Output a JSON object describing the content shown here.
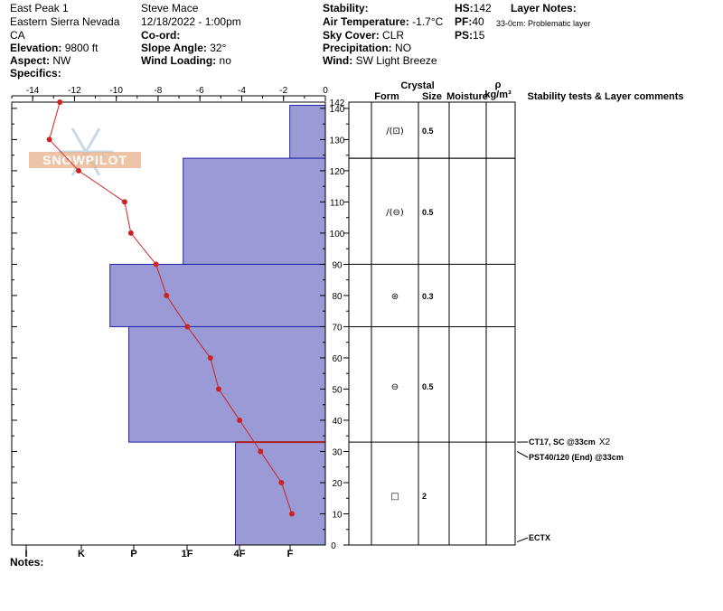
{
  "header": {
    "location": "East Peak 1",
    "region": "Eastern Sierra Nevada",
    "state": "CA",
    "elevation_label": "Elevation:",
    "elevation": "9800 ft",
    "aspect_label": "Aspect:",
    "aspect": "NW",
    "specifics_label": "Specifics:",
    "observer": "Steve Mace",
    "datetime": "12/18/2022 - 1:00pm",
    "coord_label": "Co-ord:",
    "slope_label": "Slope Angle:",
    "slope": "32°",
    "wind_loading_label": "Wind Loading:",
    "wind_loading": "no",
    "stability_label": "Stability:",
    "air_temp_label": "Air Temperature:",
    "air_temp": "-1.7°C",
    "sky_label": "Sky Cover:",
    "sky": "CLR",
    "precip_label": "Precipitation:",
    "precip": "NO",
    "wind_label": "Wind:",
    "wind": "SW Light Breeze",
    "hs_label": "HS:",
    "hs": "142",
    "pf_label": "PF:",
    "pf": "40",
    "ps_label": "PS:",
    "ps": "15",
    "layer_notes_label": "Layer Notes:",
    "layer_note": "33-0cm: Problematic layer",
    "notes_label": "Notes:"
  },
  "columns": {
    "crystal": "Crystal",
    "form": "Form",
    "size": "Size",
    "moisture": "Moisture",
    "rho": "ρ",
    "density_unit": "kg/m³",
    "stability": "Stability tests & Layer comments"
  },
  "watermark": "SNOWPILOT",
  "chart_data": {
    "type": "line",
    "temp_axis": {
      "ticks": [
        -14,
        -12,
        -10,
        -8,
        -6,
        -4,
        -2,
        0
      ],
      "range": [
        -15,
        0
      ]
    },
    "height_axis": {
      "ticks": [
        10,
        20,
        30,
        40,
        50,
        60,
        70,
        80,
        90,
        100,
        110,
        120,
        130,
        140
      ],
      "top_label": "142",
      "range": [
        0,
        142
      ]
    },
    "hardness_axis": {
      "labels": [
        "I",
        "K",
        "P",
        "1F",
        "4F",
        "F"
      ]
    },
    "temperature_profile": {
      "height_cm": [
        142,
        130,
        120,
        110,
        100,
        90,
        80,
        70,
        60,
        50,
        40,
        30,
        20,
        10
      ],
      "temp_c": [
        -12.7,
        -13.2,
        -11.8,
        -9.6,
        -9.3,
        -8.1,
        -7.6,
        -6.6,
        -5.5,
        -5.1,
        -4.1,
        -3.1,
        -2.1,
        -1.6
      ]
    },
    "hardness_profile": [
      {
        "top": 142,
        "bottom": 141,
        "width": 0,
        "label": ""
      },
      {
        "top": 141,
        "bottom": 124,
        "width": 1.7
      },
      {
        "top": 124,
        "bottom": 90,
        "width": 6.8
      },
      {
        "top": 90,
        "bottom": 70,
        "width": 10.3
      },
      {
        "top": 70,
        "bottom": 33,
        "width": 9.4
      },
      {
        "top": 33,
        "bottom": 0,
        "width": 4.3
      }
    ],
    "problem_layer_cm": 33,
    "layers": [
      {
        "top": 142,
        "bottom": 124,
        "form": "/(⊡)",
        "size": "0.5",
        "mid": 133
      },
      {
        "top": 124,
        "bottom": 90,
        "form": "/(⊖)",
        "size": "0.5",
        "mid": 107
      },
      {
        "top": 90,
        "bottom": 70,
        "form": "⊛",
        "size": "0.3",
        "mid": 80
      },
      {
        "top": 70,
        "bottom": 33,
        "form": "⊖",
        "size": "0.5",
        "mid": 51
      },
      {
        "top": 33,
        "bottom": 0,
        "form": "□",
        "size": "2",
        "mid": 16
      }
    ],
    "tests": [
      {
        "text": "CT17, SC @33cm",
        "suffix": "X2",
        "height": 33
      },
      {
        "text": "PST40/120 (End) @33cm",
        "suffix": "",
        "height": 30
      },
      {
        "text": "ECTX",
        "suffix": "",
        "height": 1
      }
    ]
  }
}
